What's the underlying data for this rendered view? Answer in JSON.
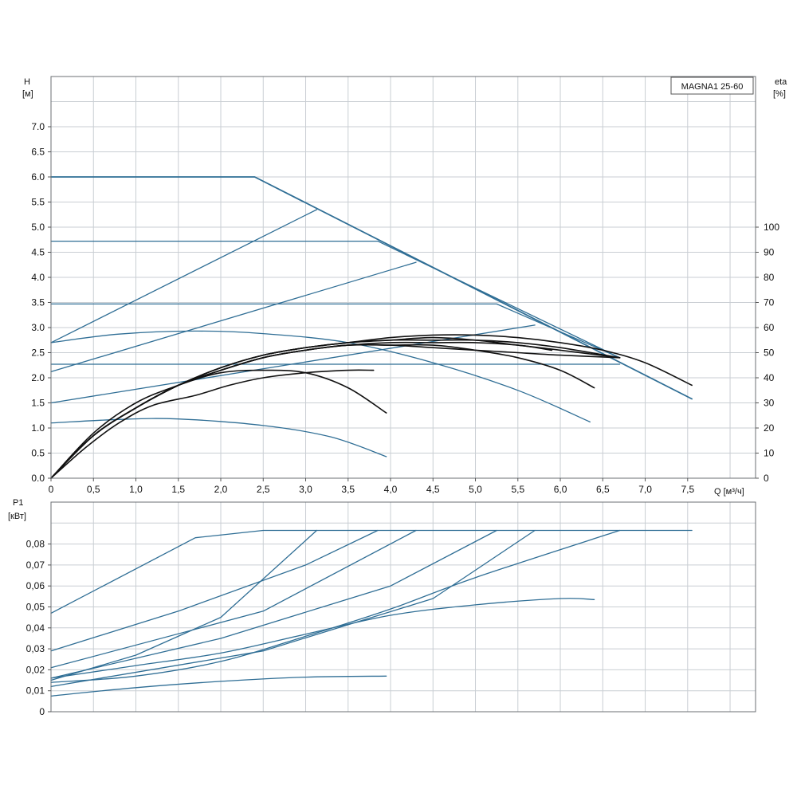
{
  "chart_data": {
    "type": "line",
    "model_label": "MAGNA1 25-60",
    "colors": {
      "head_power": "#2f6e95",
      "efficiency": "#111111",
      "limit": "#1e5f88",
      "grid": "#c9ced3"
    },
    "head_panel": {
      "ylabel_symbol": "H",
      "ylabel_unit": "[м]",
      "y2label_symbol": "eta",
      "y2label_unit": "[%]",
      "xlabel": "Q [м³/ч]",
      "xlim": [
        0,
        8.3
      ],
      "ylim": [
        0,
        8.0
      ],
      "y2lim": [
        0,
        160
      ],
      "x_ticks": [
        "0",
        "0,5",
        "1,0",
        "1,5",
        "2,0",
        "2,5",
        "3,0",
        "3,5",
        "4,0",
        "4,5",
        "5,0",
        "5,5",
        "6,0",
        "6,5",
        "7,0",
        "7,5"
      ],
      "x_tick_values": [
        0,
        0.5,
        1.0,
        1.5,
        2.0,
        2.5,
        3.0,
        3.5,
        4.0,
        4.5,
        5.0,
        5.5,
        6.0,
        6.5,
        7.0,
        7.5
      ],
      "y_ticks": [
        "0.0",
        "0.5",
        "1.0",
        "1.5",
        "2.0",
        "2.5",
        "3.0",
        "3.5",
        "4.0",
        "4.5",
        "5.0",
        "5.5",
        "6.0",
        "6.5",
        "7.0"
      ],
      "y_tick_values": [
        0,
        0.5,
        1.0,
        1.5,
        2.0,
        2.5,
        3.0,
        3.5,
        4.0,
        4.5,
        5.0,
        5.5,
        6.0,
        6.5,
        7.0
      ],
      "y2_ticks": [
        "0",
        "10",
        "20",
        "30",
        "40",
        "50",
        "60",
        "70",
        "80",
        "90",
        "100"
      ],
      "y2_tick_values": [
        0,
        10,
        20,
        30,
        40,
        50,
        60,
        70,
        80,
        90,
        100
      ],
      "series": [
        {
          "kind": "head",
          "points": [
            [
              0,
              6.0
            ],
            [
              2.4,
              6.0
            ],
            [
              7.55,
              1.58
            ]
          ]
        },
        {
          "kind": "head",
          "points": [
            [
              0,
              4.72
            ],
            [
              3.85,
              4.72
            ],
            [
              6.7,
              2.4
            ]
          ]
        },
        {
          "kind": "head",
          "points": [
            [
              0,
              3.47
            ],
            [
              5.25,
              3.47
            ],
            [
              6.7,
              2.4
            ]
          ]
        },
        {
          "kind": "head",
          "points": [
            [
              0,
              2.27
            ],
            [
              6.7,
              2.27
            ]
          ]
        },
        {
          "kind": "head",
          "points": [
            [
              0,
              2.7
            ],
            [
              3.13,
              5.35
            ]
          ]
        },
        {
          "kind": "head",
          "points": [
            [
              0,
              2.12
            ],
            [
              4.3,
              4.3
            ]
          ]
        },
        {
          "kind": "head",
          "points": [
            [
              0,
              1.5
            ],
            [
              5.7,
              3.05
            ]
          ]
        },
        {
          "kind": "head",
          "points": [
            [
              0,
              2.7
            ],
            [
              0.8,
              2.87
            ],
            [
              1.7,
              2.93
            ],
            [
              2.5,
              2.88
            ],
            [
              3.5,
              2.7
            ],
            [
              4.5,
              2.3
            ],
            [
              5.5,
              1.75
            ],
            [
              6.35,
              1.12
            ]
          ]
        },
        {
          "kind": "head",
          "points": [
            [
              0,
              1.1
            ],
            [
              0.8,
              1.17
            ],
            [
              1.5,
              1.18
            ],
            [
              2.5,
              1.05
            ],
            [
              3.3,
              0.82
            ],
            [
              3.95,
              0.43
            ]
          ]
        },
        {
          "kind": "efficiency",
          "points": [
            [
              0,
              0
            ],
            [
              0.4,
              12
            ],
            [
              0.8,
              22
            ],
            [
              1.2,
              29
            ],
            [
              1.7,
              33
            ],
            [
              2.1,
              37
            ],
            [
              2.5,
              40
            ],
            [
              3.0,
              42
            ],
            [
              3.5,
              43
            ],
            [
              3.8,
              43
            ]
          ]
        },
        {
          "kind": "efficiency",
          "points": [
            [
              0,
              0
            ],
            [
              0.5,
              18
            ],
            [
              1.0,
              30
            ],
            [
              1.5,
              37
            ],
            [
              2.0,
              42
            ],
            [
              2.5,
              43
            ],
            [
              3.0,
              42
            ],
            [
              3.5,
              36
            ],
            [
              3.95,
              26
            ]
          ]
        },
        {
          "kind": "efficiency",
          "points": [
            [
              0,
              0
            ],
            [
              0.5,
              17
            ],
            [
              1.0,
              28
            ],
            [
              1.5,
              37
            ],
            [
              2.0,
              43
            ],
            [
              2.5,
              48
            ],
            [
              3.0,
              51
            ],
            [
              3.5,
              53
            ],
            [
              4.0,
              54
            ],
            [
              4.5,
              54
            ],
            [
              5.0,
              54
            ],
            [
              5.5,
              53
            ],
            [
              5.9,
              51
            ]
          ]
        },
        {
          "kind": "efficiency",
          "points": [
            [
              0,
              0
            ],
            [
              0.5,
              17
            ],
            [
              1.0,
              28
            ],
            [
              1.5,
              37
            ],
            [
              2.0,
              43
            ],
            [
              2.5,
              48
            ],
            [
              3.0,
              51
            ],
            [
              3.5,
              53
            ],
            [
              4.0,
              53
            ],
            [
              4.5,
              53
            ],
            [
              5.0,
              51
            ],
            [
              5.5,
              48
            ],
            [
              6.0,
              43
            ],
            [
              6.4,
              36
            ]
          ]
        },
        {
          "kind": "efficiency",
          "points": [
            [
              0,
              0
            ],
            [
              0.5,
              17
            ],
            [
              1.0,
              28
            ],
            [
              1.5,
              37
            ],
            [
              2.0,
              44
            ],
            [
              2.5,
              49
            ],
            [
              3.0,
              52
            ],
            [
              3.5,
              54
            ],
            [
              4.0,
              55
            ],
            [
              4.5,
              55
            ],
            [
              5.0,
              55
            ],
            [
              5.5,
              54
            ],
            [
              6.0,
              52
            ],
            [
              6.7,
              48
            ]
          ]
        },
        {
          "kind": "efficiency",
          "points": [
            [
              0,
              0
            ],
            [
              0.5,
              17
            ],
            [
              1.0,
              28
            ],
            [
              1.5,
              37
            ],
            [
              2.0,
              44
            ],
            [
              2.5,
              49
            ],
            [
              3.0,
              52
            ],
            [
              3.5,
              54
            ],
            [
              4.0,
              56
            ],
            [
              4.5,
              57
            ],
            [
              5.0,
              57
            ],
            [
              5.5,
              56
            ],
            [
              6.0,
              54
            ],
            [
              6.5,
              51
            ],
            [
              7.0,
              46
            ],
            [
              7.55,
              37
            ]
          ]
        },
        {
          "kind": "efficiency",
          "points": [
            [
              0,
              0
            ],
            [
              0.5,
              17
            ],
            [
              1.0,
              28
            ],
            [
              1.5,
              37
            ],
            [
              2.0,
              44
            ],
            [
              2.5,
              49
            ],
            [
              3.0,
              52
            ],
            [
              3.5,
              54
            ],
            [
              4.0,
              55
            ],
            [
              4.5,
              56
            ],
            [
              5.0,
              55
            ],
            [
              5.5,
              53
            ],
            [
              6.0,
              51
            ],
            [
              6.7,
              48
            ]
          ]
        },
        {
          "kind": "efficiency",
          "points": [
            [
              0,
              0
            ],
            [
              0.5,
              17
            ],
            [
              1.0,
              28
            ],
            [
              1.5,
              37
            ],
            [
              2.0,
              43
            ],
            [
              2.5,
              48
            ],
            [
              3.0,
              51
            ],
            [
              3.5,
              53
            ],
            [
              4.0,
              53
            ],
            [
              4.5,
              52
            ],
            [
              5.0,
              51
            ],
            [
              5.5,
              50
            ],
            [
              6.0,
              49
            ],
            [
              6.7,
              48
            ]
          ]
        }
      ]
    },
    "power_panel": {
      "ylabel_symbol": "P1",
      "ylabel_unit": "[кВт]",
      "xlim": [
        0,
        8.3
      ],
      "ylim": [
        0,
        0.1
      ],
      "y_ticks": [
        "0",
        "0,01",
        "0,02",
        "0,03",
        "0,04",
        "0,05",
        "0,06",
        "0,07",
        "0,08"
      ],
      "y_tick_values": [
        0,
        0.01,
        0.02,
        0.03,
        0.04,
        0.05,
        0.06,
        0.07,
        0.08
      ],
      "series": [
        {
          "kind": "power",
          "points": [
            [
              0,
              0.047
            ],
            [
              1.7,
              0.083
            ],
            [
              2.5,
              0.0865
            ],
            [
              7.55,
              0.0865
            ]
          ]
        },
        {
          "kind": "power",
          "points": [
            [
              0,
              0.029
            ],
            [
              1.5,
              0.048
            ],
            [
              3.0,
              0.07
            ],
            [
              3.85,
              0.0865
            ]
          ]
        },
        {
          "kind": "power",
          "points": [
            [
              0,
              0.021
            ],
            [
              2.5,
              0.048
            ],
            [
              4.3,
              0.0865
            ]
          ]
        },
        {
          "kind": "power",
          "points": [
            [
              0,
              0.016
            ],
            [
              2.0,
              0.035
            ],
            [
              4.0,
              0.06
            ],
            [
              5.25,
              0.0865
            ]
          ]
        },
        {
          "kind": "power",
          "points": [
            [
              0,
              0.015
            ],
            [
              1.0,
              0.027
            ],
            [
              2.0,
              0.045
            ],
            [
              3.13,
              0.0865
            ]
          ]
        },
        {
          "kind": "power",
          "points": [
            [
              0,
              0.012
            ],
            [
              2.5,
              0.029
            ],
            [
              4.5,
              0.054
            ],
            [
              5.7,
              0.0865
            ]
          ]
        },
        {
          "kind": "power",
          "points": [
            [
              0,
              0.014
            ],
            [
              1.0,
              0.017
            ],
            [
              2.0,
              0.024
            ],
            [
              3.0,
              0.036
            ],
            [
              4.0,
              0.049
            ],
            [
              5.0,
              0.064
            ],
            [
              6.7,
              0.0865
            ]
          ]
        },
        {
          "kind": "power",
          "points": [
            [
              0,
              0.016
            ],
            [
              1.0,
              0.022
            ],
            [
              2.0,
              0.028
            ],
            [
              3.0,
              0.037
            ],
            [
              4.0,
              0.046
            ],
            [
              5.0,
              0.051
            ],
            [
              6.0,
              0.054
            ],
            [
              6.4,
              0.0535
            ]
          ]
        },
        {
          "kind": "power",
          "points": [
            [
              0,
              0.0075
            ],
            [
              1.0,
              0.0115
            ],
            [
              2.0,
              0.0145
            ],
            [
              3.0,
              0.0165
            ],
            [
              3.95,
              0.017
            ]
          ]
        }
      ]
    }
  }
}
